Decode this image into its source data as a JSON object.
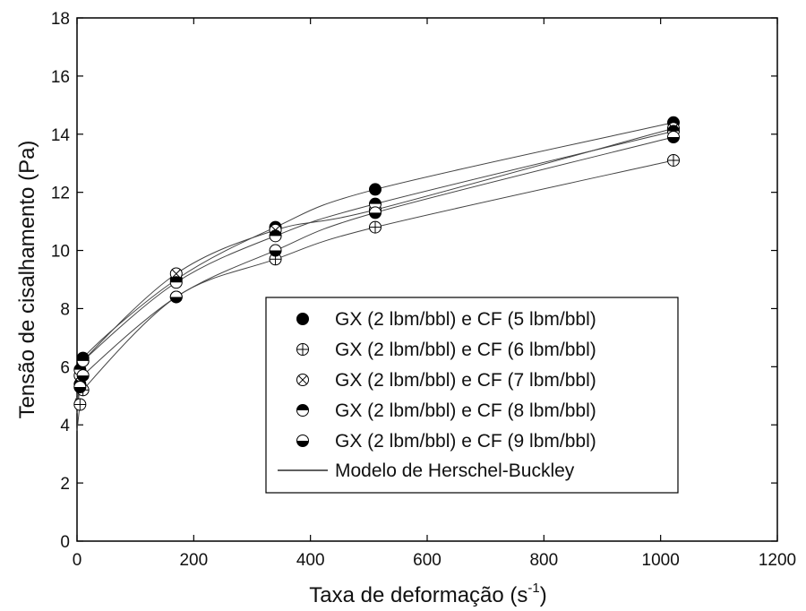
{
  "chart_data": {
    "type": "scatter",
    "xlabel": "Taxa de deformação (s",
    "xlabel_sup": "-1",
    "xlabel_close": ")",
    "ylabel": "Tensão de cisalhamento (Pa)",
    "xlim": [
      0,
      1200
    ],
    "ylim": [
      0,
      18
    ],
    "x_ticks": [
      "0",
      "200",
      "400",
      "600",
      "800",
      "1000",
      "1200"
    ],
    "y_ticks": [
      "0",
      "2",
      "4",
      "6",
      "8",
      "10",
      "12",
      "14",
      "16",
      "18"
    ],
    "grid": false,
    "legend_position": "lower-right",
    "x": [
      5.1,
      10.2,
      170,
      340,
      511,
      1022
    ],
    "series": [
      {
        "name": "GX (2 lbm/bbl) e CF (5 lbm/bbl)",
        "marker": "filled",
        "values": [
          5.4,
          6.3,
          9.0,
          10.8,
          12.1,
          14.4
        ]
      },
      {
        "name": "GX (2 lbm/bbl) e CF (6 lbm/bbl)",
        "marker": "circle-plus",
        "values": [
          4.7,
          5.2,
          8.4,
          9.7,
          10.8,
          13.1
        ]
      },
      {
        "name": "GX (2 lbm/bbl) e CF (7 lbm/bbl)",
        "marker": "circle-x",
        "values": [
          5.7,
          6.2,
          9.2,
          10.7,
          11.4,
          14.2
        ]
      },
      {
        "name": "GX (2 lbm/bbl) e CF (8 lbm/bbl)",
        "marker": "half-top",
        "values": [
          5.9,
          6.2,
          8.9,
          10.5,
          11.6,
          14.1
        ]
      },
      {
        "name": "GX (2 lbm/bbl) e CF (9 lbm/bbl)",
        "marker": "half-bottom",
        "values": [
          5.3,
          5.7,
          8.4,
          10.0,
          11.3,
          13.9
        ]
      }
    ],
    "model_legend": "Modelo de Herschel-Buckley"
  }
}
